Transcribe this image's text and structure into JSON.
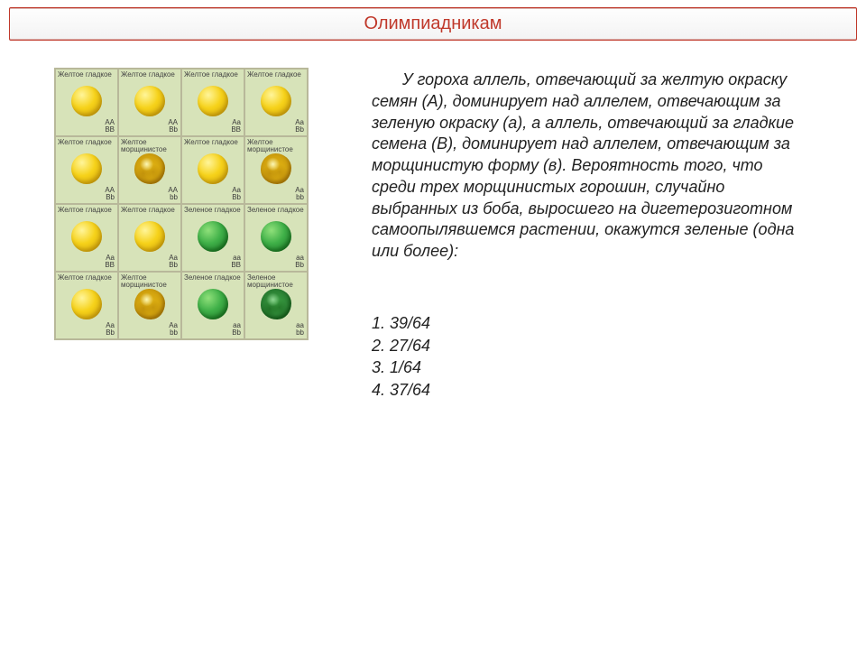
{
  "header": {
    "title": "Олимпиадникам"
  },
  "punnett": {
    "cells": [
      [
        {
          "phenotype_label": "Желтое гладкое",
          "color": "yellow",
          "shape": "smooth",
          "genotype_l1": "AA",
          "genotype_l2": "BB"
        },
        {
          "phenotype_label": "Желтое гладкое",
          "color": "yellow",
          "shape": "smooth",
          "genotype_l1": "AA",
          "genotype_l2": "Bb"
        },
        {
          "phenotype_label": "Желтое гладкое",
          "color": "yellow",
          "shape": "smooth",
          "genotype_l1": "Aa",
          "genotype_l2": "BB"
        },
        {
          "phenotype_label": "Желтое гладкое",
          "color": "yellow",
          "shape": "smooth",
          "genotype_l1": "Aa",
          "genotype_l2": "Bb"
        }
      ],
      [
        {
          "phenotype_label": "Желтое гладкое",
          "color": "yellow",
          "shape": "smooth",
          "genotype_l1": "AA",
          "genotype_l2": "Bb"
        },
        {
          "phenotype_label": "Желтое морщинистое",
          "color": "yellow",
          "shape": "wrinkled",
          "genotype_l1": "AA",
          "genotype_l2": "bb"
        },
        {
          "phenotype_label": "Желтое гладкое",
          "color": "yellow",
          "shape": "smooth",
          "genotype_l1": "Aa",
          "genotype_l2": "Bb"
        },
        {
          "phenotype_label": "Желтое морщинистое",
          "color": "yellow",
          "shape": "wrinkled",
          "genotype_l1": "Aa",
          "genotype_l2": "bb"
        }
      ],
      [
        {
          "phenotype_label": "Желтое гладкое",
          "color": "yellow",
          "shape": "smooth",
          "genotype_l1": "Aa",
          "genotype_l2": "BB"
        },
        {
          "phenotype_label": "Желтое гладкое",
          "color": "yellow",
          "shape": "smooth",
          "genotype_l1": "Aa",
          "genotype_l2": "Bb"
        },
        {
          "phenotype_label": "Зеленое гладкое",
          "color": "green",
          "shape": "smooth",
          "genotype_l1": "aa",
          "genotype_l2": "BB"
        },
        {
          "phenotype_label": "Зеленое гладкое",
          "color": "green",
          "shape": "smooth",
          "genotype_l1": "aa",
          "genotype_l2": "Bb"
        }
      ],
      [
        {
          "phenotype_label": "Желтое гладкое",
          "color": "yellow",
          "shape": "smooth",
          "genotype_l1": "Aa",
          "genotype_l2": "Bb"
        },
        {
          "phenotype_label": "Желтое морщинистое",
          "color": "yellow",
          "shape": "wrinkled",
          "genotype_l1": "Aa",
          "genotype_l2": "bb"
        },
        {
          "phenotype_label": "Зеленое гладкое",
          "color": "green",
          "shape": "smooth",
          "genotype_l1": "aa",
          "genotype_l2": "Bb"
        },
        {
          "phenotype_label": "Зеленое морщинистое",
          "color": "green",
          "shape": "wrinkled",
          "genotype_l1": "aa",
          "genotype_l2": "bb"
        }
      ]
    ],
    "colors": {
      "cell_bg": "#d7e3b9",
      "cell_border": "#b8b89a",
      "yellow_light": "#fff59a",
      "yellow_mid": "#f6d21a",
      "yellow_dark": "#d6a80a",
      "green_light": "#8fe07a",
      "green_mid": "#3fb048",
      "green_dark": "#1e7a2a"
    }
  },
  "problem": {
    "text": "У гороха аллель, отвечающий за желтую окраску семян (А), доминирует над аллелем, отвечающим за зеленую окраску (а), а аллель, отвечающий за гладкие семена (В), доминирует над аллелем, отвечающим за морщинистую форму (в). Вероятность того, что среди трех морщинистых горошин, случайно выбранных из боба, выросшего на дигетерозиготном самоопылявшемся растении, окажутся зеленые (одна или более):"
  },
  "answers": {
    "items": [
      "1. 39/64",
      "2. 27/64",
      "3. 1/64",
      "4. 37/64"
    ]
  }
}
